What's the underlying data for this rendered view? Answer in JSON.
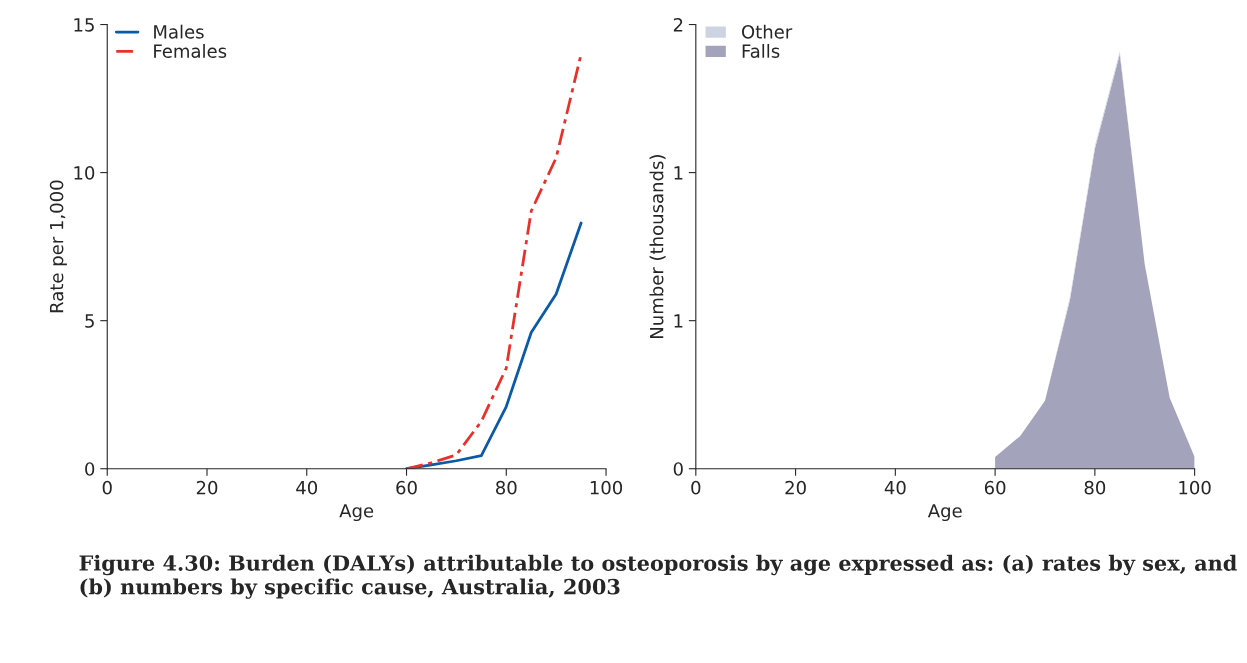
{
  "chart_data": [
    {
      "type": "line",
      "xlabel": "Age",
      "ylabel": "Rate per 1,000",
      "x": [
        60,
        65,
        70,
        75,
        80,
        85,
        90,
        95
      ],
      "xlim": [
        0,
        100
      ],
      "xticks": [
        0,
        20,
        40,
        60,
        80,
        100
      ],
      "ylim": [
        0,
        15
      ],
      "yticks": [
        0,
        5,
        10,
        15
      ],
      "grid": false,
      "legend": "top left",
      "series": [
        {
          "name": "Males",
          "color": "#0a5aa8",
          "line_style": "solid",
          "values": [
            0,
            0.13,
            0.27,
            0.44,
            2.1,
            4.6,
            5.9,
            8.3
          ]
        },
        {
          "name": "Females",
          "color": "#e8312a",
          "line_style": "dashed",
          "values": [
            0,
            0.2,
            0.47,
            1.6,
            3.4,
            8.7,
            10.5,
            14.0
          ]
        }
      ],
      "annotations": [
        "Figure 4.30: Burden (DALYs) attributable to osteoporosis by age expressed as: (a) rates by sex, and (b) numbers by specific cause, Australia, 2003"
      ]
    },
    {
      "type": "area",
      "stacked": true,
      "xlabel": "Age",
      "ylabel": "Number (thousands)",
      "x": [
        60,
        65,
        70,
        75,
        80,
        85,
        90,
        95,
        100
      ],
      "xlim": [
        0,
        100
      ],
      "xticks": [
        0,
        20,
        40,
        60,
        80,
        100
      ],
      "ylim": [
        0,
        1.5
      ],
      "yticks": [
        0,
        {
          "value": 0.5,
          "label": "1"
        },
        1,
        {
          "value": 1.5,
          "label": "2"
        }
      ],
      "grid": false,
      "legend": "top left",
      "series": [
        {
          "name": "Falls",
          "color": "#a3a3bb",
          "values": [
            0.04,
            0.11,
            0.23,
            0.57,
            1.08,
            1.4,
            0.69,
            0.24,
            0.04
          ]
        },
        {
          "name": "Other",
          "color": "#cdd3e0",
          "values": [
            0,
            0,
            0,
            0.01,
            0.01,
            0.01,
            0,
            0,
            0
          ]
        }
      ]
    }
  ]
}
